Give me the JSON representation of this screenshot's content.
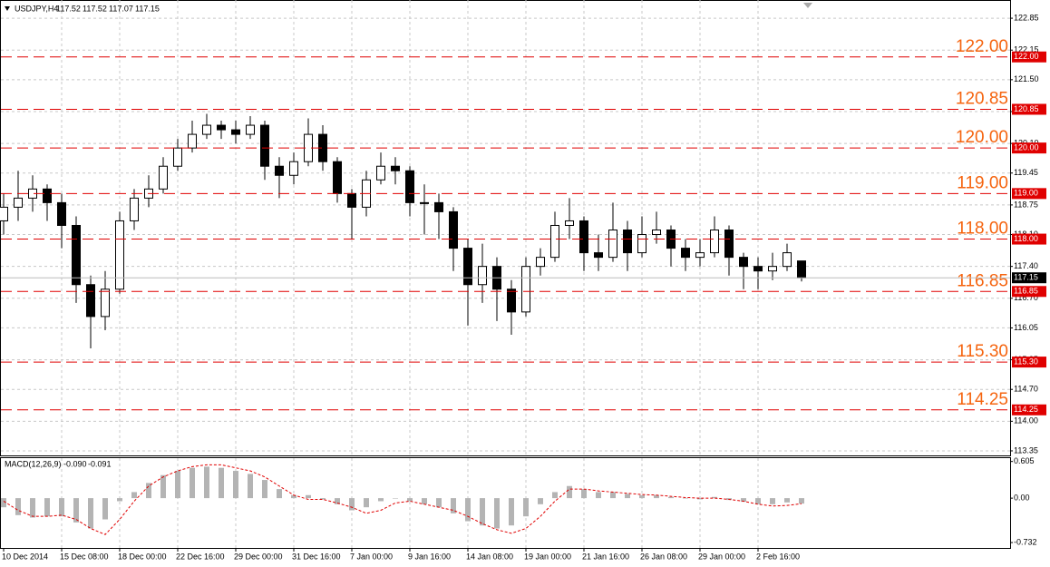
{
  "chart_data": {
    "type": "candlestick",
    "symbol": "USDJPY,H4",
    "categories": [
      "10 Dec 2014",
      null,
      null,
      null,
      "15 Dec 08:00",
      null,
      null,
      null,
      "18 Dec 00:00",
      null,
      null,
      null,
      "22 Dec 16:00",
      null,
      null,
      null,
      "29 Dec 00:00",
      null,
      null,
      null,
      "31 Dec 16:00",
      null,
      null,
      null,
      "7 Jan 00:00",
      null,
      null,
      null,
      "9 Jan 16:00",
      null,
      null,
      null,
      "14 Jan 08:00",
      null,
      null,
      null,
      "19 Jan 00:00",
      null,
      null,
      null,
      "21 Jan 16:00",
      null,
      null,
      null,
      "26 Jan 08:00",
      null,
      null,
      null,
      "29 Jan 00:00",
      null,
      null,
      null,
      "2 Feb 16:00",
      null,
      null,
      null
    ],
    "open": [
      118.4,
      118.7,
      118.9,
      119.1,
      118.8,
      118.3,
      117.0,
      116.3,
      116.9,
      118.4,
      118.9,
      119.1,
      119.6,
      120.0,
      120.3,
      120.5,
      120.4,
      120.3,
      120.5,
      119.6,
      119.4,
      119.7,
      120.3,
      119.7,
      119.0,
      118.7,
      119.3,
      119.6,
      119.5,
      118.8,
      118.8,
      118.6,
      117.8,
      117.0,
      117.4,
      116.9,
      116.4,
      117.4,
      117.6,
      118.3,
      118.4,
      117.7,
      117.6,
      118.2,
      117.7,
      118.1,
      118.2,
      117.8,
      117.6,
      117.7,
      118.2,
      117.6,
      117.4,
      117.3,
      117.4,
      117.52
    ],
    "high": [
      119.0,
      119.5,
      119.4,
      119.2,
      119.0,
      118.5,
      117.2,
      117.3,
      118.6,
      119.1,
      119.4,
      119.8,
      120.2,
      120.6,
      120.75,
      120.6,
      120.6,
      120.7,
      120.6,
      119.8,
      119.9,
      120.65,
      120.5,
      119.8,
      119.1,
      119.5,
      119.9,
      119.8,
      119.6,
      119.2,
      119.0,
      118.7,
      118.0,
      117.9,
      117.6,
      117.1,
      117.6,
      117.8,
      118.6,
      118.9,
      118.5,
      118.1,
      118.8,
      118.4,
      118.5,
      118.6,
      118.3,
      118.0,
      118.0,
      118.5,
      118.3,
      117.7,
      117.6,
      117.7,
      117.9,
      117.52
    ],
    "low": [
      118.1,
      118.4,
      118.6,
      118.4,
      117.8,
      116.6,
      115.6,
      116.0,
      116.8,
      118.2,
      118.7,
      119.0,
      119.5,
      119.9,
      120.2,
      120.2,
      120.1,
      120.2,
      119.3,
      118.9,
      119.2,
      119.6,
      119.5,
      118.8,
      118.0,
      118.5,
      119.2,
      119.2,
      118.5,
      118.1,
      118.0,
      117.3,
      116.1,
      116.6,
      116.2,
      115.9,
      116.3,
      117.2,
      117.5,
      118.0,
      117.3,
      117.3,
      117.5,
      117.3,
      117.6,
      117.9,
      117.4,
      117.3,
      117.4,
      117.6,
      117.2,
      116.9,
      116.9,
      117.1,
      117.3,
      117.07
    ],
    "close": [
      118.7,
      118.9,
      119.1,
      118.8,
      118.3,
      117.0,
      116.3,
      116.9,
      118.4,
      118.9,
      119.1,
      119.6,
      120.0,
      120.3,
      120.5,
      120.4,
      120.3,
      120.5,
      119.6,
      119.4,
      119.7,
      120.3,
      119.7,
      119.0,
      118.7,
      119.3,
      119.6,
      119.5,
      118.8,
      118.8,
      118.6,
      117.8,
      117.0,
      117.4,
      116.9,
      116.4,
      117.4,
      117.6,
      118.3,
      118.4,
      117.7,
      117.6,
      118.2,
      117.7,
      118.1,
      118.2,
      117.8,
      117.6,
      117.7,
      118.2,
      117.6,
      117.4,
      117.3,
      117.4,
      117.7,
      117.15
    ],
    "ylim": [
      113.23,
      123.25
    ],
    "yticks": [
      122.85,
      122.15,
      {
        "value": 121.5,
        "label": "121.50"
      },
      {
        "value": 120.8,
        "label": "120.80"
      },
      {
        "value": 120.1,
        "label": "120.10"
      },
      119.45,
      118.75,
      {
        "value": 118.1,
        "label": "118.10"
      },
      {
        "value": 117.4,
        "label": "117.40"
      },
      {
        "value": 116.7,
        "label": "116.70"
      },
      116.05,
      115.35,
      {
        "value": 114.7,
        "label": "114.70"
      },
      {
        "value": 114,
        "label": "114.00"
      },
      113.35
    ],
    "grid": true,
    "up_color": "#ffffff",
    "down_color": "#000000",
    "level_color": "#e00000",
    "level_label_color": "#f5640f",
    "levels": [
      {
        "value": 122,
        "label": "122.00"
      },
      {
        "value": 120.85,
        "label": "120.85"
      },
      {
        "value": 120,
        "label": "120.00"
      },
      {
        "value": 119,
        "label": "119.00"
      },
      {
        "value": 118,
        "label": "118.00"
      },
      {
        "value": 116.85,
        "label": "116.85"
      },
      {
        "value": 115.3,
        "label": "115.30"
      },
      {
        "value": 114.25,
        "label": "114.25"
      }
    ],
    "macd": {
      "name": "MACD(12,26,9)",
      "readout_main": {
        "value": -0.09,
        "label": "-0.090"
      },
      "readout_signal": -0.091,
      "histogram_color": "#b4b4b4",
      "signal_color": "#e00000",
      "ylim": [
        -0.836,
        0.66
      ],
      "yticks": [
        0.605,
        {
          "value": 0,
          "label": "0.00"
        },
        -0.732
      ],
      "histogram": [
        -0.15,
        -0.28,
        -0.32,
        -0.3,
        -0.3,
        -0.4,
        -0.5,
        -0.35,
        -0.05,
        0.1,
        0.25,
        0.38,
        0.45,
        0.5,
        0.52,
        0.5,
        0.45,
        0.4,
        0.3,
        0.15,
        0.05,
        0.05,
        -0.02,
        -0.1,
        -0.2,
        -0.15,
        -0.05,
        0.0,
        -0.05,
        -0.1,
        -0.15,
        -0.25,
        -0.38,
        -0.45,
        -0.5,
        -0.45,
        -0.3,
        -0.1,
        0.1,
        0.2,
        0.15,
        0.1,
        0.1,
        0.07,
        0.05,
        0.05,
        0.02,
        0.0,
        -0.02,
        0.02,
        -0.03,
        -0.06,
        -0.1,
        -0.1,
        -0.07,
        -0.09
      ],
      "signal": [
        -0.05,
        -0.2,
        -0.3,
        -0.3,
        -0.28,
        -0.35,
        -0.5,
        -0.6,
        -0.35,
        -0.05,
        0.2,
        0.35,
        0.45,
        0.52,
        0.55,
        0.55,
        0.5,
        0.45,
        0.35,
        0.2,
        0.05,
        -0.02,
        -0.02,
        -0.08,
        -0.15,
        -0.25,
        -0.2,
        -0.08,
        -0.05,
        -0.1,
        -0.15,
        -0.2,
        -0.3,
        -0.42,
        -0.52,
        -0.58,
        -0.5,
        -0.3,
        -0.05,
        0.15,
        0.15,
        0.12,
        0.1,
        0.08,
        0.06,
        0.05,
        0.03,
        0.01,
        0.0,
        0.0,
        -0.02,
        -0.05,
        -0.1,
        -0.13,
        -0.12,
        -0.091
      ]
    }
  }
}
